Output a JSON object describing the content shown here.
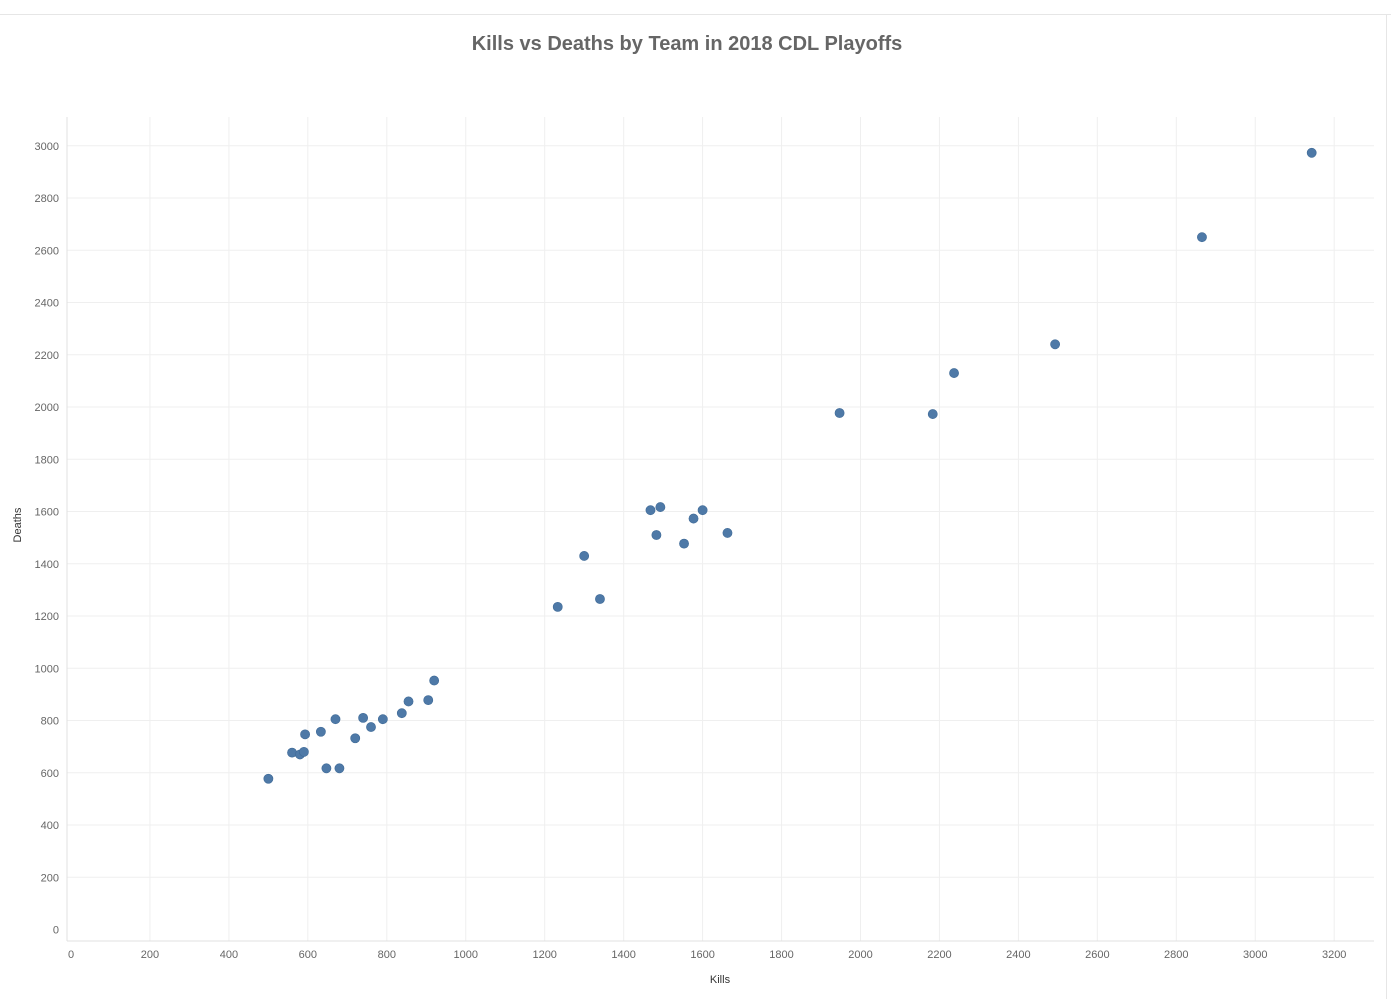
{
  "chart_data": {
    "type": "scatter",
    "title": "Kills vs Deaths by Team in 2018 CDL Playoffs",
    "xlabel": "Kills",
    "ylabel": "Deaths",
    "xlim": [
      0,
      3300
    ],
    "ylim": [
      0,
      3100
    ],
    "x_ticks": [
      "0",
      "200",
      "400",
      "600",
      "800",
      "1000",
      "1200",
      "1400",
      "1600",
      "1800",
      "2000",
      "2200",
      "2400",
      "2600",
      "2800",
      "3000",
      "3200"
    ],
    "y_ticks": [
      "0",
      "200",
      "400",
      "600",
      "800",
      "1000",
      "1200",
      "1400",
      "1600",
      "1800",
      "2000",
      "2200",
      "2400",
      "2600",
      "2800",
      "3000"
    ],
    "grid": true,
    "marker_color": "#4e79a7",
    "points": [
      {
        "x": 500,
        "y": 577
      },
      {
        "x": 560,
        "y": 677
      },
      {
        "x": 580,
        "y": 670
      },
      {
        "x": 590,
        "y": 680
      },
      {
        "x": 593,
        "y": 747
      },
      {
        "x": 633,
        "y": 757
      },
      {
        "x": 647,
        "y": 617
      },
      {
        "x": 670,
        "y": 805
      },
      {
        "x": 680,
        "y": 617
      },
      {
        "x": 720,
        "y": 732
      },
      {
        "x": 740,
        "y": 810
      },
      {
        "x": 760,
        "y": 775
      },
      {
        "x": 790,
        "y": 805
      },
      {
        "x": 838,
        "y": 828
      },
      {
        "x": 855,
        "y": 873
      },
      {
        "x": 905,
        "y": 878
      },
      {
        "x": 920,
        "y": 953
      },
      {
        "x": 1233,
        "y": 1235
      },
      {
        "x": 1300,
        "y": 1430
      },
      {
        "x": 1340,
        "y": 1265
      },
      {
        "x": 1468,
        "y": 1605
      },
      {
        "x": 1483,
        "y": 1510
      },
      {
        "x": 1493,
        "y": 1617
      },
      {
        "x": 1553,
        "y": 1477
      },
      {
        "x": 1577,
        "y": 1573
      },
      {
        "x": 1600,
        "y": 1605
      },
      {
        "x": 1663,
        "y": 1518
      },
      {
        "x": 1947,
        "y": 1977
      },
      {
        "x": 2183,
        "y": 1973
      },
      {
        "x": 2237,
        "y": 2130
      },
      {
        "x": 2493,
        "y": 2240
      },
      {
        "x": 2865,
        "y": 2650
      },
      {
        "x": 3143,
        "y": 2973
      }
    ]
  }
}
